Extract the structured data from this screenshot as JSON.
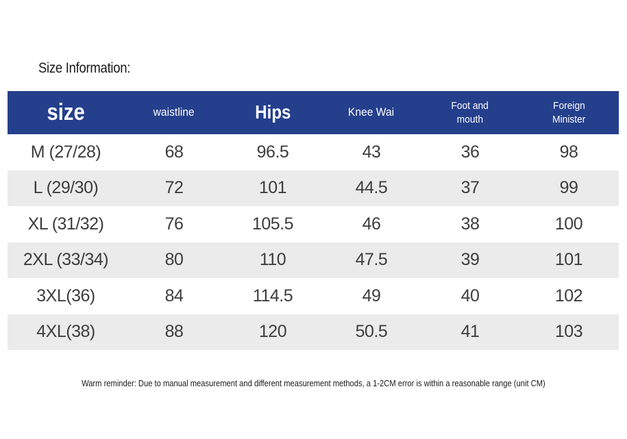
{
  "heading": "Size Information:",
  "table": {
    "headers": [
      {
        "lines": [
          "size"
        ]
      },
      {
        "lines": [
          "waistline"
        ]
      },
      {
        "lines": [
          "Hips"
        ]
      },
      {
        "lines": [
          "Knee Wai"
        ]
      },
      {
        "lines": [
          "Foot and",
          "mouth"
        ]
      },
      {
        "lines": [
          "Foreign",
          "Minister"
        ]
      }
    ],
    "rows": [
      [
        "M (27/28)",
        "68",
        "96.5",
        "43",
        "36",
        "98"
      ],
      [
        "L (29/30)",
        "72",
        "101",
        "44.5",
        "37",
        "99"
      ],
      [
        "XL (31/32)",
        "76",
        "105.5",
        "46",
        "38",
        "100"
      ],
      [
        "2XL (33/34)",
        "80",
        "110",
        "47.5",
        "39",
        "101"
      ],
      [
        "3XL(36)",
        "84",
        "114.5",
        "49",
        "40",
        "102"
      ],
      [
        "4XL(38)",
        "88",
        "120",
        "50.5",
        "41",
        "103"
      ]
    ]
  },
  "reminder": "Warm reminder: Due to manual measurement and different measurement methods, a 1-2CM error is within a reasonable range (unit CM)",
  "colors": {
    "header_bg": "#243f8c",
    "header_text": "#ffffff",
    "row_alt_bg": "#ebebeb",
    "cell_text": "#3d3d3d"
  }
}
